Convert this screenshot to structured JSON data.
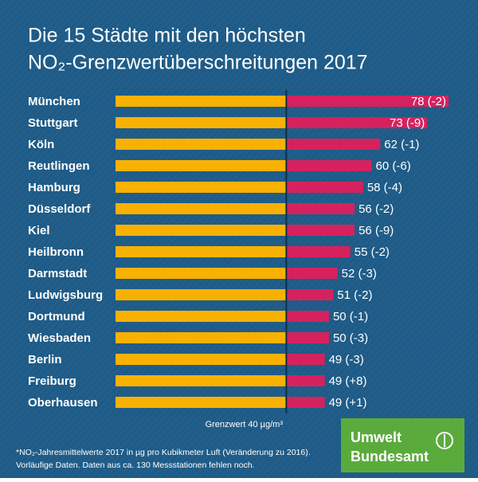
{
  "chart_data": {
    "type": "bar",
    "title": [
      "Die 15 Städte mit den höchsten",
      "NO₂-Grenzwertüberschreitungen 2017"
    ],
    "categories": [
      "München",
      "Stuttgart",
      "Köln",
      "Reutlingen",
      "Hamburg",
      "Düsseldorf",
      "Kiel",
      "Heilbronn",
      "Darmstadt",
      "Ludwigsburg",
      "Dortmund",
      "Wiesbaden",
      "Berlin",
      "Freiburg",
      "Oberhausen"
    ],
    "values": [
      78,
      73,
      62,
      60,
      58,
      56,
      56,
      55,
      52,
      51,
      50,
      50,
      49,
      49,
      49
    ],
    "value_labels": [
      "78 (-2)",
      "73 (-9)",
      "62 (-1)",
      "60 (-6)",
      "58 (-4)",
      "56 (-2)",
      "56 (-9)",
      "55 (-2)",
      "52 (-3)",
      "51 (-2)",
      "50 (-1)",
      "50 (-3)",
      "49 (-3)",
      "49 (+8)",
      "49 (+1)"
    ],
    "threshold": {
      "value": 40,
      "label": "Grenzwert 40 µg/m³"
    },
    "colors": {
      "below": "#f8b100",
      "above": "#d5225e"
    },
    "footnote": [
      "*NO₂-Jahresmittelwerte 2017 in µg pro Kubikmeter Luft (Veränderung zu 2016).",
      "Vorläufige Daten. Daten aus ca. 130 Messstationen fehlen noch."
    ],
    "logo": [
      "Umwelt",
      "Bundesamt"
    ]
  }
}
